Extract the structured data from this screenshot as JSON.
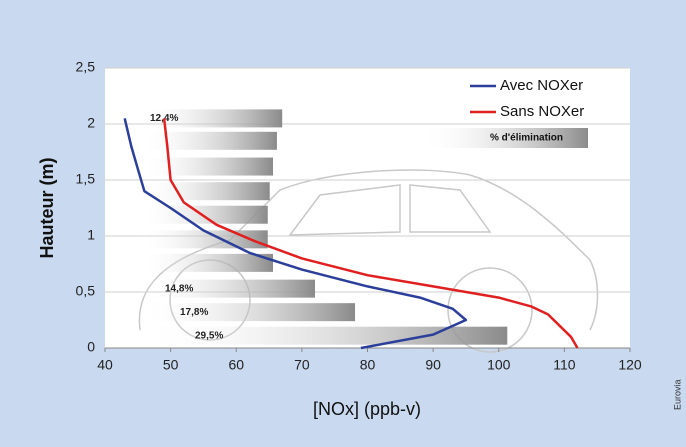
{
  "chart_data": {
    "type": "line",
    "xlabel": "[NOx] (ppb-v)",
    "ylabel": "Hauteur (m)",
    "xlim": [
      40,
      120
    ],
    "xticks": [
      40,
      50,
      60,
      70,
      80,
      90,
      100,
      110,
      120
    ],
    "ylim": [
      0,
      2.5
    ],
    "yticks": [
      0,
      {
        "value": 0.5,
        "label": "0,5"
      },
      1,
      {
        "value": 1.5,
        "label": "1,5"
      },
      2,
      {
        "value": 2.5,
        "label": "2,5"
      }
    ],
    "grid": true,
    "legend": "upper right",
    "series": [
      {
        "name": "Avec NOXer",
        "color": "#2b3f9a",
        "x": [
          79,
          90,
          95,
          93,
          88,
          80,
          70,
          62,
          55,
          50,
          46,
          45,
          44,
          43
        ],
        "values": [
          0,
          0.12,
          0.25,
          0.35,
          0.45,
          0.55,
          0.7,
          0.85,
          1.05,
          1.25,
          1.4,
          1.6,
          1.8,
          2.05
        ]
      },
      {
        "name": "Sans NOXer",
        "color": "#e02020",
        "x": [
          112,
          111,
          107.5,
          105,
          100,
          90,
          80,
          70,
          63,
          57,
          52,
          50,
          49.5,
          49
        ],
        "values": [
          0,
          0.1,
          0.3,
          0.37,
          0.45,
          0.55,
          0.65,
          0.8,
          0.95,
          1.1,
          1.3,
          1.5,
          1.8,
          2.05
        ]
      }
    ],
    "elimination_bars": {
      "legend": "% d'élimination",
      "heights": [
        2.05,
        1.85,
        1.62,
        1.4,
        1.19,
        0.97,
        0.76,
        0.53,
        0.32,
        0.11
      ],
      "ends": [
        67,
        66.2,
        65.6,
        65.1,
        64.8,
        64.8,
        65.6,
        72,
        78.1,
        101.3
      ],
      "labels": [
        "12,4%",
        null,
        null,
        null,
        null,
        null,
        null,
        "14,8%",
        "17,8%",
        "29,5%"
      ]
    },
    "credit": "Eurovia"
  }
}
